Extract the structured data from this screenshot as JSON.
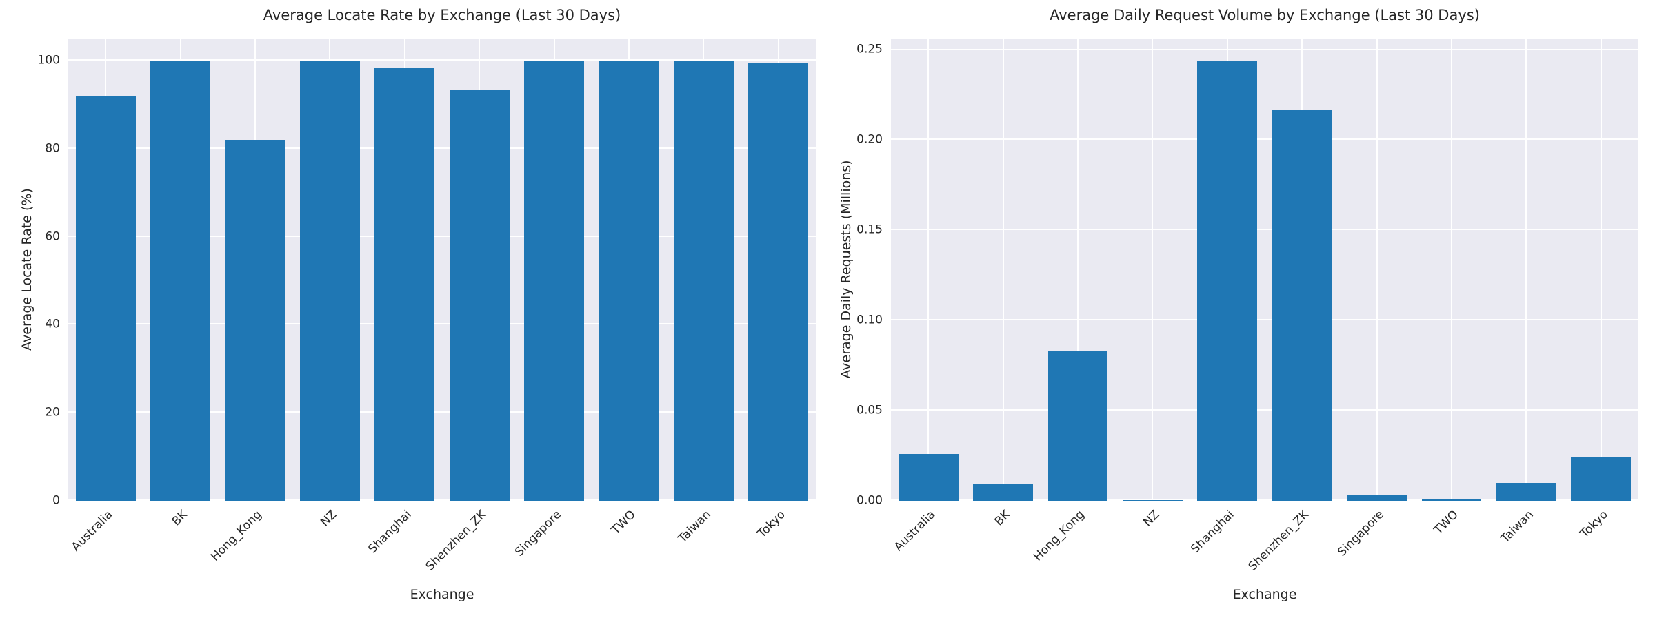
{
  "colors": {
    "bar": "#1f77b4",
    "plot_background": "#eaeaf2",
    "gridline": "#ffffff",
    "text": "#262626",
    "figure_background": "#ffffff"
  },
  "chart_data": [
    {
      "type": "bar",
      "title": "Average Locate Rate by Exchange (Last 30 Days)",
      "xlabel": "Exchange",
      "ylabel": "Average Locate Rate (%)",
      "categories": [
        "Australia",
        "BK",
        "Hong_Kong",
        "NZ",
        "Shanghai",
        "Shenzhen_ZK",
        "Singapore",
        "TWO",
        "Taiwan",
        "Tokyo"
      ],
      "values": [
        91.9,
        100.0,
        82.0,
        100.0,
        98.4,
        93.5,
        100.0,
        100.0,
        100.0,
        99.4
      ],
      "ylim": [
        0,
        105
      ],
      "yticks": [
        0,
        20,
        40,
        60,
        80,
        100
      ],
      "ytick_labels": [
        "0",
        "20",
        "40",
        "60",
        "80",
        "100"
      ],
      "grid": true,
      "legend": "none",
      "xtick_rotation_deg": 45
    },
    {
      "type": "bar",
      "title": "Average Daily Request Volume by Exchange (Last 30 Days)",
      "xlabel": "Exchange",
      "ylabel": "Average Daily Requests (Millions)",
      "categories": [
        "Australia",
        "BK",
        "Hong_Kong",
        "NZ",
        "Shanghai",
        "Shenzhen_ZK",
        "Singapore",
        "TWO",
        "Taiwan",
        "Tokyo"
      ],
      "values": [
        0.026,
        0.009,
        0.083,
        0.0005,
        0.244,
        0.217,
        0.003,
        0.001,
        0.01,
        0.024
      ],
      "ylim": [
        0,
        0.2563
      ],
      "yticks": [
        0.0,
        0.05,
        0.1,
        0.15,
        0.2,
        0.25
      ],
      "ytick_labels": [
        "0.00",
        "0.05",
        "0.10",
        "0.15",
        "0.20",
        "0.25"
      ],
      "grid": true,
      "legend": "none",
      "xtick_rotation_deg": 45
    }
  ]
}
